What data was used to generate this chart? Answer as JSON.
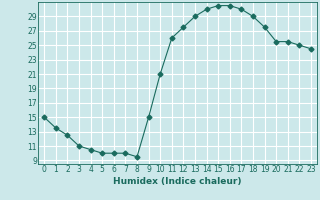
{
  "x": [
    0,
    1,
    2,
    3,
    4,
    5,
    6,
    7,
    8,
    9,
    10,
    11,
    12,
    13,
    14,
    15,
    16,
    17,
    18,
    19,
    20,
    21,
    22,
    23
  ],
  "y": [
    15,
    13.5,
    12.5,
    11,
    10.5,
    10,
    10,
    10,
    9.5,
    15,
    21,
    26,
    27.5,
    29,
    30,
    30.5,
    30.5,
    30,
    29,
    27.5,
    25.5,
    25.5,
    25,
    24.5
  ],
  "line_color": "#1a6b5e",
  "marker": "D",
  "marker_size": 2.5,
  "bg_color": "#cce8ea",
  "grid_color": "#ffffff",
  "xlabel": "Humidex (Indice chaleur)",
  "ylim": [
    8.5,
    31
  ],
  "xlim": [
    -0.5,
    23.5
  ],
  "yticks": [
    9,
    11,
    13,
    15,
    17,
    19,
    21,
    23,
    25,
    27,
    29
  ],
  "xticks": [
    0,
    1,
    2,
    3,
    4,
    5,
    6,
    7,
    8,
    9,
    10,
    11,
    12,
    13,
    14,
    15,
    16,
    17,
    18,
    19,
    20,
    21,
    22,
    23
  ],
  "xtick_labels": [
    "0",
    "1",
    "2",
    "3",
    "4",
    "5",
    "6",
    "7",
    "8",
    "9",
    "10",
    "11",
    "12",
    "13",
    "14",
    "15",
    "16",
    "17",
    "18",
    "19",
    "20",
    "21",
    "22",
    "23"
  ],
  "label_fontsize": 6.5,
  "tick_fontsize": 5.5
}
